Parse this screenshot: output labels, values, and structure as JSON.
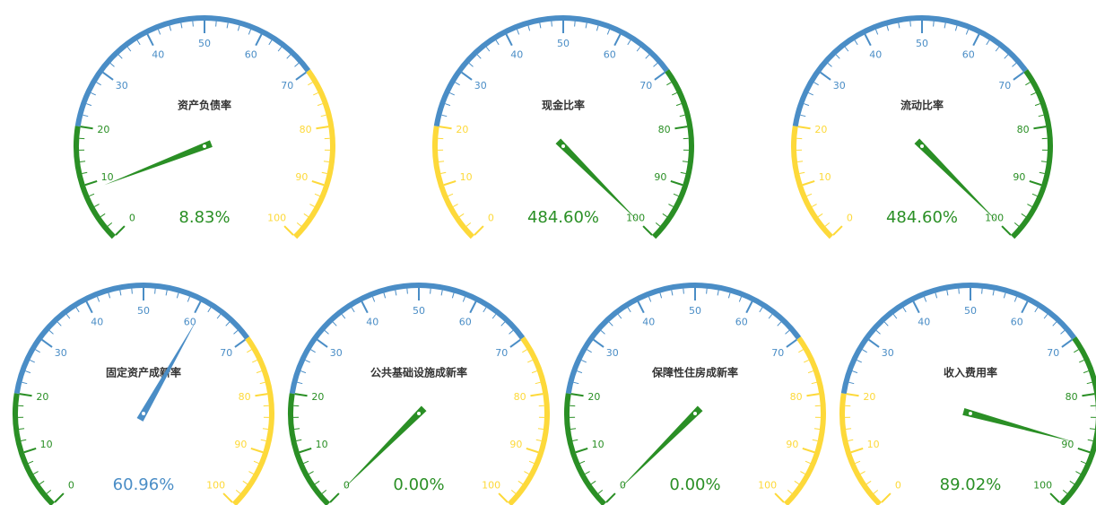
{
  "chart_data": [
    {
      "type": "gauge",
      "title": "资产负债率",
      "value": 8.83,
      "value_label": "8.83%",
      "ylim": [
        0,
        100
      ],
      "yticks": [
        0,
        10,
        20,
        30,
        40,
        50,
        60,
        70,
        80,
        90,
        100
      ],
      "bands": [
        {
          "to": 20,
          "color": "#2a8f25"
        },
        {
          "to": 70,
          "color": "#4a8dc6"
        },
        {
          "to": 100,
          "color": "#fdd93a"
        }
      ]
    },
    {
      "type": "gauge",
      "title": "现金比率",
      "value": 484.6,
      "value_label": "484.60%",
      "ylim": [
        0,
        100
      ],
      "yticks": [
        0,
        10,
        20,
        30,
        40,
        50,
        60,
        70,
        80,
        90,
        100
      ],
      "bands": [
        {
          "to": 20,
          "color": "#fdd93a"
        },
        {
          "to": 70,
          "color": "#4a8dc6"
        },
        {
          "to": 100,
          "color": "#2a8f25"
        }
      ]
    },
    {
      "type": "gauge",
      "title": "流动比率",
      "value": 484.6,
      "value_label": "484.60%",
      "ylim": [
        0,
        100
      ],
      "yticks": [
        0,
        10,
        20,
        30,
        40,
        50,
        60,
        70,
        80,
        90,
        100
      ],
      "bands": [
        {
          "to": 20,
          "color": "#fdd93a"
        },
        {
          "to": 70,
          "color": "#4a8dc6"
        },
        {
          "to": 100,
          "color": "#2a8f25"
        }
      ]
    },
    {
      "type": "gauge",
      "title": "固定资产成新率",
      "value": 60.96,
      "value_label": "60.96%",
      "ylim": [
        0,
        100
      ],
      "yticks": [
        0,
        10,
        20,
        30,
        40,
        50,
        60,
        70,
        80,
        90,
        100
      ],
      "bands": [
        {
          "to": 20,
          "color": "#2a8f25"
        },
        {
          "to": 70,
          "color": "#4a8dc6"
        },
        {
          "to": 100,
          "color": "#fdd93a"
        }
      ]
    },
    {
      "type": "gauge",
      "title": "公共基础设施成新率",
      "value": 0.0,
      "value_label": "0.00%",
      "ylim": [
        0,
        100
      ],
      "yticks": [
        0,
        10,
        20,
        30,
        40,
        50,
        60,
        70,
        80,
        90,
        100
      ],
      "bands": [
        {
          "to": 20,
          "color": "#2a8f25"
        },
        {
          "to": 70,
          "color": "#4a8dc6"
        },
        {
          "to": 100,
          "color": "#fdd93a"
        }
      ]
    },
    {
      "type": "gauge",
      "title": "保障性住房成新率",
      "value": 0.0,
      "value_label": "0.00%",
      "ylim": [
        0,
        100
      ],
      "yticks": [
        0,
        10,
        20,
        30,
        40,
        50,
        60,
        70,
        80,
        90,
        100
      ],
      "bands": [
        {
          "to": 20,
          "color": "#2a8f25"
        },
        {
          "to": 70,
          "color": "#4a8dc6"
        },
        {
          "to": 100,
          "color": "#fdd93a"
        }
      ]
    },
    {
      "type": "gauge",
      "title": "收入费用率",
      "value": 89.02,
      "value_label": "89.02%",
      "ylim": [
        0,
        100
      ],
      "yticks": [
        0,
        10,
        20,
        30,
        40,
        50,
        60,
        70,
        80,
        90,
        100
      ],
      "bands": [
        {
          "to": 20,
          "color": "#fdd93a"
        },
        {
          "to": 70,
          "color": "#4a8dc6"
        },
        {
          "to": 100,
          "color": "#2a8f25"
        }
      ]
    }
  ]
}
